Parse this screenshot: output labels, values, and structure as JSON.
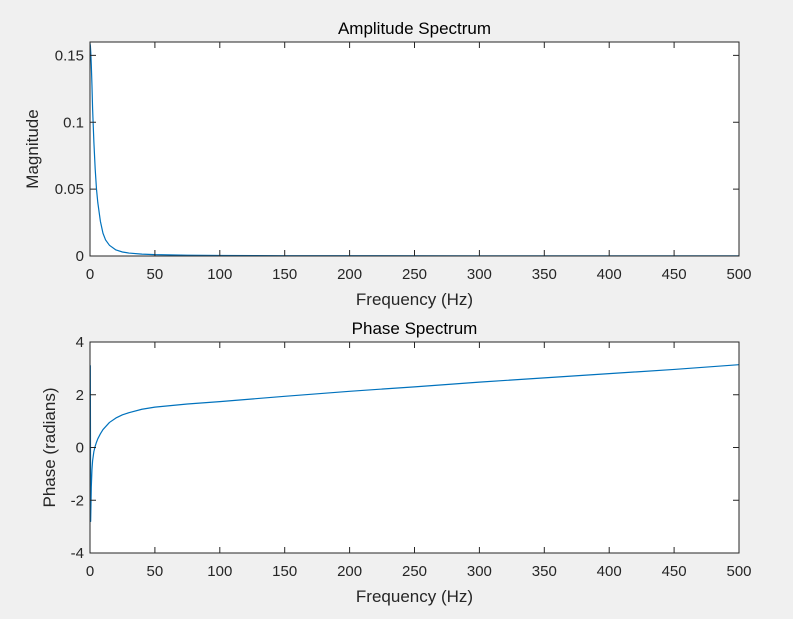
{
  "chart_data": [
    {
      "type": "line",
      "title": "Amplitude Spectrum",
      "xlabel": "Frequency (Hz)",
      "ylabel": "Magnitude",
      "xlim": [
        0,
        500
      ],
      "ylim": [
        0,
        0.16
      ],
      "xticks": [
        0,
        50,
        100,
        150,
        200,
        250,
        300,
        350,
        400,
        450,
        500
      ],
      "xtick_labels": [
        "0",
        "50",
        "100",
        "150",
        "200",
        "250",
        "300",
        "350",
        "400",
        "450",
        "500"
      ],
      "yticks": [
        0,
        0.05,
        0.1,
        0.15
      ],
      "ytick_labels": [
        "0",
        "0.05",
        "0.1",
        "0.15"
      ],
      "grid": false,
      "series": [
        {
          "color": "#0072bd",
          "x": [
            0,
            0.3,
            0.6,
            1,
            1.5,
            2,
            3,
            4,
            5,
            6,
            8,
            10,
            12,
            15,
            20,
            25,
            30,
            40,
            50,
            75,
            100,
            150,
            200,
            300,
            400,
            500
          ],
          "y": [
            0.159,
            0.157,
            0.152,
            0.143,
            0.128,
            0.11,
            0.085,
            0.065,
            0.05,
            0.04,
            0.026,
            0.017,
            0.012,
            0.008,
            0.0045,
            0.003,
            0.0022,
            0.0014,
            0.001,
            0.0006,
            0.0004,
            0.00025,
            0.00018,
            0.00012,
            0.0001,
            8e-05
          ]
        }
      ]
    },
    {
      "type": "line",
      "title": "Phase Spectrum",
      "xlabel": "Frequency (Hz)",
      "ylabel": "Phase (radians)",
      "xlim": [
        0,
        500
      ],
      "ylim": [
        -4,
        4
      ],
      "xticks": [
        0,
        50,
        100,
        150,
        200,
        250,
        300,
        350,
        400,
        450,
        500
      ],
      "xtick_labels": [
        "0",
        "50",
        "100",
        "150",
        "200",
        "250",
        "300",
        "350",
        "400",
        "450",
        "500"
      ],
      "yticks": [
        -4,
        -2,
        0,
        2,
        4
      ],
      "ytick_labels": [
        "-4",
        "-2",
        "0",
        "2",
        "4"
      ],
      "grid": false,
      "series": [
        {
          "color": "#0072bd",
          "x": [
            0,
            0.25,
            0.5,
            1,
            1.5,
            2,
            3,
            4,
            5,
            6,
            8,
            10,
            15,
            20,
            25,
            30,
            40,
            50,
            75,
            100,
            150,
            200,
            250,
            300,
            350,
            400,
            450,
            500
          ],
          "y": [
            3.1,
            3.1,
            -2.8,
            -1.5,
            -0.85,
            -0.5,
            -0.15,
            0.05,
            0.2,
            0.33,
            0.52,
            0.68,
            0.95,
            1.12,
            1.24,
            1.32,
            1.45,
            1.53,
            1.65,
            1.74,
            1.94,
            2.13,
            2.3,
            2.48,
            2.64,
            2.8,
            2.96,
            3.14
          ]
        }
      ]
    }
  ]
}
